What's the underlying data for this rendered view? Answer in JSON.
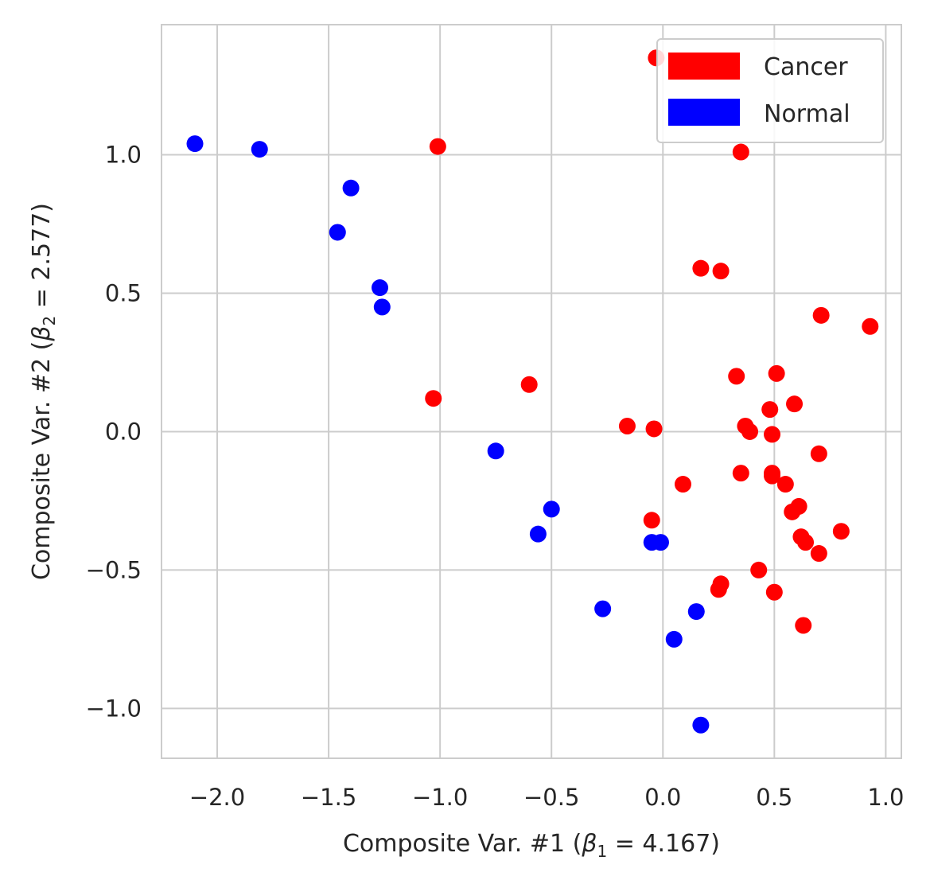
{
  "chart_data": {
    "type": "scatter",
    "xlabel": "Composite Var. #1 (",
    "xlabel_beta": "β",
    "xlabel_sub": "1",
    "xlabel_rest": " = 4.167)",
    "ylabel": "Composite Var. #2 (",
    "ylabel_beta": "β",
    "ylabel_sub": "2",
    "ylabel_rest": " = 2.577)",
    "xlim": [
      -2.25,
      1.07
    ],
    "ylim": [
      -1.18,
      1.47
    ],
    "x_ticks": [
      -2.0,
      -1.5,
      -1.0,
      -0.5,
      0.0,
      0.5,
      1.0
    ],
    "x_tick_labels": [
      "−2.0",
      "−1.5",
      "−1.0",
      "−0.5",
      "0.0",
      "0.5",
      "1.0"
    ],
    "y_ticks": [
      -1.0,
      -0.5,
      0.0,
      0.5,
      1.0
    ],
    "y_tick_labels": [
      "−1.0",
      "−0.5",
      "0.0",
      "0.5",
      "1.0"
    ],
    "grid": true,
    "legend_position": "top-right",
    "legend": [
      {
        "label": "Cancer",
        "color": "#ff0000"
      },
      {
        "label": "Normal",
        "color": "#0000ff"
      }
    ],
    "series": [
      {
        "name": "Cancer",
        "color": "#ff0000",
        "points": [
          [
            -0.03,
            1.35
          ],
          [
            0.35,
            1.01
          ],
          [
            -1.01,
            1.03
          ],
          [
            0.17,
            0.59
          ],
          [
            0.26,
            0.58
          ],
          [
            0.71,
            0.42
          ],
          [
            0.93,
            0.38
          ],
          [
            0.33,
            0.2
          ],
          [
            0.51,
            0.21
          ],
          [
            -1.03,
            0.12
          ],
          [
            -0.6,
            0.17
          ],
          [
            0.48,
            0.08
          ],
          [
            0.59,
            0.1
          ],
          [
            -0.16,
            0.02
          ],
          [
            -0.04,
            0.01
          ],
          [
            0.37,
            0.02
          ],
          [
            0.39,
            0.0
          ],
          [
            0.49,
            -0.01
          ],
          [
            0.7,
            -0.08
          ],
          [
            0.35,
            -0.15
          ],
          [
            0.49,
            -0.15
          ],
          [
            0.49,
            -0.16
          ],
          [
            0.55,
            -0.19
          ],
          [
            0.09,
            -0.19
          ],
          [
            0.58,
            -0.29
          ],
          [
            0.61,
            -0.27
          ],
          [
            -0.05,
            -0.32
          ],
          [
            0.62,
            -0.38
          ],
          [
            0.64,
            -0.4
          ],
          [
            0.8,
            -0.36
          ],
          [
            0.7,
            -0.44
          ],
          [
            0.43,
            -0.5
          ],
          [
            0.26,
            -0.55
          ],
          [
            0.25,
            -0.57
          ],
          [
            0.5,
            -0.58
          ],
          [
            0.63,
            -0.7
          ]
        ]
      },
      {
        "name": "Normal",
        "color": "#0000ff",
        "points": [
          [
            -2.1,
            1.04
          ],
          [
            -1.81,
            1.02
          ],
          [
            -1.4,
            0.88
          ],
          [
            -1.46,
            0.72
          ],
          [
            -1.27,
            0.52
          ],
          [
            -1.26,
            0.45
          ],
          [
            -0.75,
            -0.07
          ],
          [
            -0.5,
            -0.28
          ],
          [
            -0.56,
            -0.37
          ],
          [
            -0.05,
            -0.4
          ],
          [
            -0.01,
            -0.4
          ],
          [
            -0.27,
            -0.64
          ],
          [
            0.15,
            -0.65
          ],
          [
            0.05,
            -0.75
          ],
          [
            0.17,
            -1.06
          ]
        ]
      }
    ]
  }
}
